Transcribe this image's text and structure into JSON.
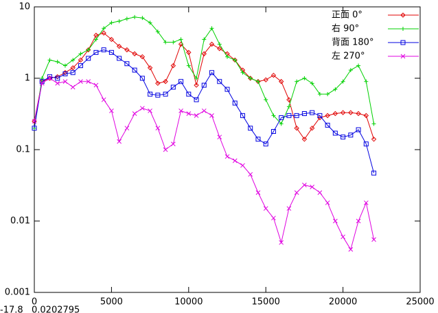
{
  "chart_data": {
    "type": "line",
    "log_y": true,
    "x": [
      0,
      500,
      1000,
      1500,
      2000,
      2500,
      3000,
      3500,
      4000,
      4500,
      5000,
      5500,
      6000,
      6500,
      7000,
      7500,
      8000,
      8500,
      9000,
      9500,
      10000,
      10500,
      11000,
      11500,
      12000,
      12500,
      13000,
      13500,
      14000,
      14500,
      15000,
      15500,
      16000,
      16500,
      17000,
      17500,
      18000,
      18500,
      19000,
      19500,
      20000,
      20500,
      21000,
      21500,
      22000
    ],
    "series": [
      {
        "name": "正面 0°",
        "color": "#e00000",
        "marker": "diamond",
        "values": [
          0.25,
          0.9,
          1.0,
          1.05,
          1.2,
          1.4,
          1.8,
          2.5,
          4.0,
          4.3,
          3.5,
          2.8,
          2.5,
          2.2,
          2.0,
          1.4,
          0.85,
          0.9,
          1.5,
          3.0,
          2.3,
          0.8,
          2.2,
          3.0,
          2.6,
          2.2,
          1.8,
          1.3,
          1.0,
          0.9,
          0.95,
          1.1,
          0.9,
          0.5,
          0.2,
          0.14,
          0.2,
          0.28,
          0.3,
          0.32,
          0.33,
          0.33,
          0.32,
          0.3,
          0.14
        ]
      },
      {
        "name": "右 90°",
        "color": "#00d000",
        "marker": "plus",
        "values": [
          0.2,
          1.0,
          1.8,
          1.7,
          1.5,
          1.8,
          2.2,
          2.5,
          3.5,
          5.0,
          6.0,
          6.3,
          6.8,
          7.2,
          7.0,
          6.0,
          4.5,
          3.2,
          3.2,
          3.5,
          1.5,
          1.0,
          3.5,
          5.0,
          3.0,
          2.0,
          1.8,
          1.2,
          1.0,
          0.9,
          0.5,
          0.3,
          0.23,
          0.4,
          0.9,
          1.0,
          0.85,
          0.6,
          0.6,
          0.7,
          0.9,
          1.3,
          1.5,
          0.9,
          0.23
        ]
      },
      {
        "name": "背面 180°",
        "color": "#0000e0",
        "marker": "square",
        "values": [
          0.2,
          0.9,
          1.05,
          1.0,
          1.15,
          1.2,
          1.5,
          1.9,
          2.3,
          2.5,
          2.3,
          1.9,
          1.6,
          1.3,
          1.0,
          0.6,
          0.58,
          0.6,
          0.75,
          0.9,
          0.6,
          0.5,
          0.8,
          1.2,
          0.9,
          0.7,
          0.45,
          0.3,
          0.2,
          0.14,
          0.12,
          0.18,
          0.28,
          0.3,
          0.3,
          0.32,
          0.33,
          0.3,
          0.22,
          0.17,
          0.15,
          0.16,
          0.19,
          0.12,
          0.047
        ]
      },
      {
        "name": "左 270°",
        "color": "#e000e0",
        "marker": "x",
        "values": [
          0.25,
          0.85,
          1.0,
          0.85,
          0.9,
          0.75,
          0.9,
          0.9,
          0.8,
          0.5,
          0.35,
          0.13,
          0.2,
          0.32,
          0.38,
          0.35,
          0.2,
          0.1,
          0.12,
          0.35,
          0.32,
          0.3,
          0.35,
          0.3,
          0.15,
          0.08,
          0.07,
          0.06,
          0.045,
          0.025,
          0.015,
          0.011,
          0.005,
          0.015,
          0.025,
          0.032,
          0.03,
          0.025,
          0.018,
          0.01,
          0.006,
          0.004,
          0.01,
          0.018,
          0.0055
        ]
      }
    ],
    "xlim": [
      0,
      25000
    ],
    "xticks": [
      0,
      5000,
      10000,
      15000,
      20000,
      25000
    ],
    "ylim": [
      0.001,
      10
    ],
    "yticks": [
      0.001,
      0.01,
      0.1,
      1,
      10
    ],
    "legend": "top-right",
    "status": [
      "-17.8",
      "0.0202795"
    ]
  }
}
